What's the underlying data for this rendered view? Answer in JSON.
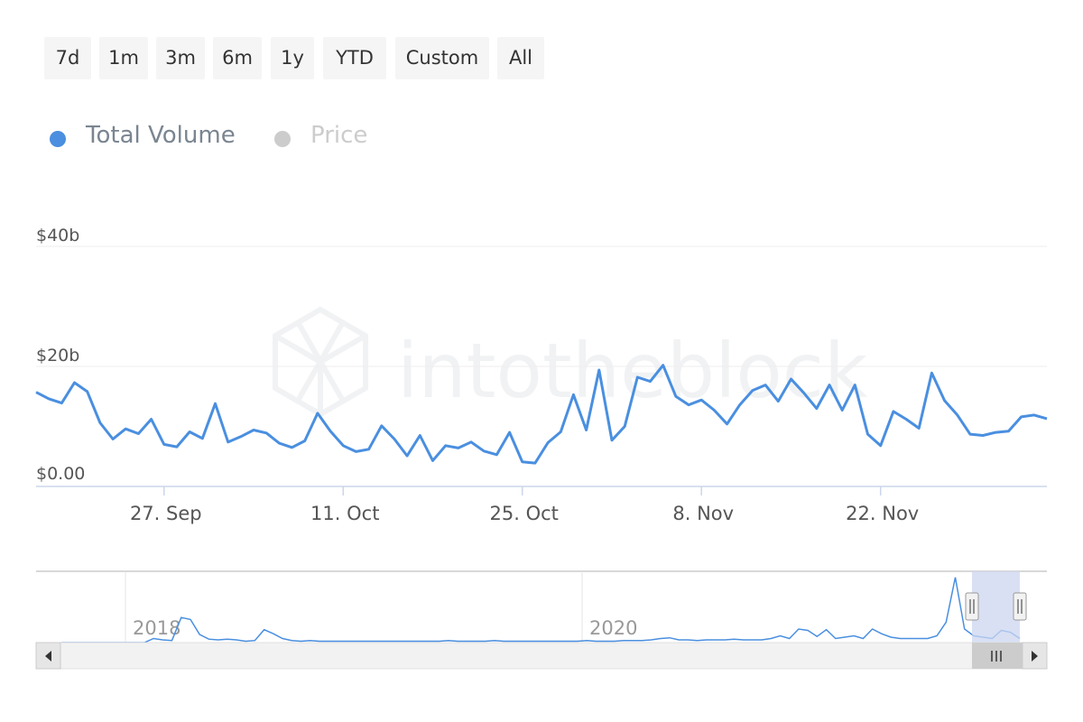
{
  "range_selector": {
    "buttons": [
      "7d",
      "1m",
      "3m",
      "6m",
      "1y",
      "YTD",
      "Custom",
      "All"
    ]
  },
  "legend": {
    "items": [
      {
        "label": "Total Volume",
        "color": "#4a8fe0",
        "active": true
      },
      {
        "label": "Price",
        "color": "#cccccc",
        "active": false
      }
    ]
  },
  "watermark": "intotheblock",
  "chart_data": {
    "type": "line",
    "title": "",
    "xlabel": "",
    "ylabel": "",
    "series": [
      {
        "name": "Total Volume",
        "color": "#4a8fe0",
        "x_start": "2020-09-17",
        "x_step_days": 1,
        "values": [
          15.7,
          14.6,
          13.9,
          17.3,
          15.8,
          10.6,
          7.9,
          9.6,
          8.8,
          11.2,
          7.0,
          6.6,
          9.1,
          8.0,
          13.8,
          7.4,
          8.3,
          9.4,
          8.9,
          7.2,
          6.5,
          7.6,
          12.2,
          9.2,
          6.8,
          5.8,
          6.2,
          10.1,
          7.9,
          5.1,
          8.5,
          4.3,
          6.8,
          6.4,
          7.4,
          5.9,
          5.3,
          9.0,
          4.1,
          3.9,
          7.3,
          9.1,
          15.3,
          9.4,
          19.4,
          7.7,
          10.0,
          18.2,
          17.5,
          20.2,
          15.0,
          13.6,
          14.4,
          12.7,
          10.4,
          13.6,
          16.0,
          16.9,
          14.2,
          17.9,
          15.6,
          13.0,
          16.9,
          12.7,
          16.9,
          8.7,
          6.8,
          12.5,
          11.2,
          9.7,
          18.9,
          14.3,
          11.9,
          8.7,
          8.5,
          9.0,
          9.2,
          11.6,
          11.9,
          11.3
        ]
      }
    ],
    "y_ticks": [
      "$0.00",
      "$20b",
      "$40b"
    ],
    "y_tick_values": [
      0,
      20,
      40
    ],
    "ylim": [
      0,
      40
    ],
    "x_ticks": [
      "27. Sep",
      "11. Oct",
      "25. Oct",
      "8. Nov",
      "22. Nov"
    ],
    "grid": true,
    "navigator": {
      "labels": [
        "2018",
        "2020"
      ],
      "series_values": [
        0,
        0,
        0,
        0,
        0,
        0,
        0,
        0,
        0,
        0,
        0.6,
        0.4,
        0.3,
        3.7,
        3.4,
        1.2,
        0.5,
        0.4,
        0.5,
        0.4,
        0.2,
        0.3,
        1.9,
        1.3,
        0.6,
        0.3,
        0.2,
        0.3,
        0.2,
        0.2,
        0.2,
        0.2,
        0.2,
        0.2,
        0.2,
        0.2,
        0.2,
        0.2,
        0.2,
        0.2,
        0.2,
        0.2,
        0.3,
        0.2,
        0.2,
        0.2,
        0.2,
        0.3,
        0.2,
        0.2,
        0.2,
        0.2,
        0.2,
        0.2,
        0.2,
        0.2,
        0.2,
        0.3,
        0.2,
        0.2,
        0.2,
        0.3,
        0.3,
        0.3,
        0.4,
        0.6,
        0.7,
        0.4,
        0.4,
        0.3,
        0.4,
        0.4,
        0.4,
        0.5,
        0.4,
        0.4,
        0.4,
        0.6,
        1.0,
        0.6,
        2.0,
        1.8,
        0.9,
        1.9,
        0.6,
        0.8,
        1.0,
        0.6,
        2.0,
        1.3,
        0.8,
        0.6,
        0.6,
        0.6,
        0.6,
        1.0,
        3.0,
        9.6,
        2.0,
        1.0,
        0.8,
        0.6,
        1.8,
        1.5,
        0.6
      ],
      "selected_range": [
        "2020-09-17",
        "2020-12-05"
      ]
    }
  }
}
